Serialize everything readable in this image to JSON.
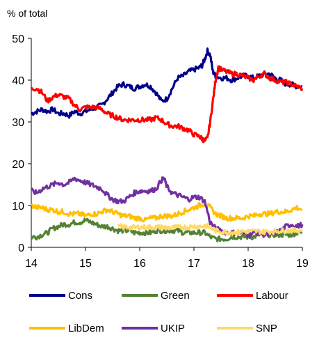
{
  "chart_data": {
    "type": "line",
    "unit_label": "% of total",
    "x_ticks": [
      "14",
      "15",
      "16",
      "17",
      "18",
      "19"
    ],
    "y_ticks": [
      "0",
      "10",
      "20",
      "30",
      "40",
      "50"
    ],
    "xlim": [
      14,
      19
    ],
    "ylim": [
      0,
      50
    ],
    "grid": false,
    "legend_position": "bottom",
    "series": [
      {
        "name": "Cons",
        "color": "#00008B",
        "points": [
          [
            14.0,
            32
          ],
          [
            14.1,
            32.5
          ],
          [
            14.2,
            33
          ],
          [
            14.3,
            32.5
          ],
          [
            14.4,
            33
          ],
          [
            14.5,
            32
          ],
          [
            14.6,
            32
          ],
          [
            14.7,
            31.5
          ],
          [
            14.8,
            32.5
          ],
          [
            14.9,
            32
          ],
          [
            15.0,
            32.5
          ],
          [
            15.1,
            33
          ],
          [
            15.2,
            33.5
          ],
          [
            15.3,
            34
          ],
          [
            15.4,
            35.5
          ],
          [
            15.5,
            37
          ],
          [
            15.6,
            38.5
          ],
          [
            15.7,
            39
          ],
          [
            15.8,
            38.5
          ],
          [
            15.9,
            38
          ],
          [
            16.0,
            38.5
          ],
          [
            16.1,
            39
          ],
          [
            16.2,
            38.5
          ],
          [
            16.3,
            37
          ],
          [
            16.4,
            35
          ],
          [
            16.5,
            35.5
          ],
          [
            16.6,
            38
          ],
          [
            16.7,
            40.5
          ],
          [
            16.8,
            41
          ],
          [
            16.9,
            42
          ],
          [
            17.0,
            42.5
          ],
          [
            17.1,
            43
          ],
          [
            17.15,
            43.5
          ],
          [
            17.2,
            45
          ],
          [
            17.25,
            47
          ],
          [
            17.3,
            46
          ],
          [
            17.35,
            42
          ],
          [
            17.4,
            41
          ],
          [
            17.5,
            40.5
          ],
          [
            17.6,
            40.5
          ],
          [
            17.7,
            40
          ],
          [
            17.8,
            40.5
          ],
          [
            17.9,
            41
          ],
          [
            18.0,
            41
          ],
          [
            18.1,
            40.5
          ],
          [
            18.2,
            41
          ],
          [
            18.3,
            41.5
          ],
          [
            18.4,
            41.5
          ],
          [
            18.5,
            40.5
          ],
          [
            18.6,
            40
          ],
          [
            18.7,
            39
          ],
          [
            18.8,
            39
          ],
          [
            18.9,
            38.5
          ],
          [
            19.0,
            38.5
          ]
        ]
      },
      {
        "name": "Green",
        "color": "#548235",
        "points": [
          [
            14.0,
            2.5
          ],
          [
            14.1,
            2.5
          ],
          [
            14.2,
            3
          ],
          [
            14.3,
            3.5
          ],
          [
            14.4,
            4.5
          ],
          [
            14.5,
            5
          ],
          [
            14.6,
            5.5
          ],
          [
            14.7,
            5.5
          ],
          [
            14.8,
            6
          ],
          [
            14.9,
            6
          ],
          [
            15.0,
            6.5
          ],
          [
            15.1,
            6
          ],
          [
            15.2,
            5.5
          ],
          [
            15.3,
            5
          ],
          [
            15.4,
            5
          ],
          [
            15.5,
            4.5
          ],
          [
            15.6,
            4
          ],
          [
            15.7,
            4
          ],
          [
            15.8,
            4
          ],
          [
            15.9,
            3.5
          ],
          [
            16.0,
            3.5
          ],
          [
            16.1,
            3.5
          ],
          [
            16.2,
            3.5
          ],
          [
            16.3,
            4
          ],
          [
            16.4,
            4
          ],
          [
            16.5,
            4
          ],
          [
            16.6,
            4
          ],
          [
            16.7,
            4
          ],
          [
            16.8,
            3.5
          ],
          [
            16.9,
            3.5
          ],
          [
            17.0,
            3.5
          ],
          [
            17.1,
            3.5
          ],
          [
            17.2,
            3.5
          ],
          [
            17.3,
            2.5
          ],
          [
            17.4,
            2
          ],
          [
            17.5,
            2
          ],
          [
            17.6,
            2
          ],
          [
            17.7,
            2.5
          ],
          [
            17.8,
            2.5
          ],
          [
            17.9,
            2.5
          ],
          [
            18.0,
            2.5
          ],
          [
            18.1,
            2.5
          ],
          [
            18.2,
            3
          ],
          [
            18.3,
            3
          ],
          [
            18.4,
            3
          ],
          [
            18.5,
            3
          ],
          [
            18.6,
            3
          ],
          [
            18.7,
            3
          ],
          [
            18.8,
            3
          ],
          [
            18.9,
            3.5
          ],
          [
            19.0,
            3.5
          ]
        ]
      },
      {
        "name": "Labour",
        "color": "#FF0000",
        "points": [
          [
            14.0,
            38
          ],
          [
            14.1,
            38
          ],
          [
            14.2,
            37
          ],
          [
            14.3,
            35
          ],
          [
            14.4,
            36
          ],
          [
            14.5,
            36.5
          ],
          [
            14.6,
            36
          ],
          [
            14.7,
            35.5
          ],
          [
            14.8,
            34
          ],
          [
            14.9,
            33
          ],
          [
            15.0,
            33.5
          ],
          [
            15.1,
            33.5
          ],
          [
            15.2,
            33.5
          ],
          [
            15.3,
            33
          ],
          [
            15.4,
            32
          ],
          [
            15.5,
            31.5
          ],
          [
            15.6,
            31
          ],
          [
            15.7,
            30.5
          ],
          [
            15.8,
            30.5
          ],
          [
            15.9,
            30.5
          ],
          [
            16.0,
            30.5
          ],
          [
            16.1,
            30.5
          ],
          [
            16.2,
            30.5
          ],
          [
            16.3,
            31
          ],
          [
            16.4,
            30.5
          ],
          [
            16.5,
            29.5
          ],
          [
            16.6,
            29
          ],
          [
            16.7,
            29
          ],
          [
            16.8,
            28.5
          ],
          [
            16.9,
            28
          ],
          [
            17.0,
            27
          ],
          [
            17.1,
            26.5
          ],
          [
            17.15,
            26
          ],
          [
            17.2,
            25.5
          ],
          [
            17.25,
            26
          ],
          [
            17.3,
            30
          ],
          [
            17.35,
            35
          ],
          [
            17.4,
            40
          ],
          [
            17.45,
            43
          ],
          [
            17.5,
            42.5
          ],
          [
            17.6,
            42
          ],
          [
            17.7,
            41.5
          ],
          [
            17.8,
            41.5
          ],
          [
            17.9,
            41
          ],
          [
            18.0,
            40.5
          ],
          [
            18.1,
            40
          ],
          [
            18.2,
            41
          ],
          [
            18.3,
            41.5
          ],
          [
            18.4,
            40.5
          ],
          [
            18.5,
            40
          ],
          [
            18.6,
            39.5
          ],
          [
            18.7,
            39.5
          ],
          [
            18.8,
            39
          ],
          [
            18.9,
            38.5
          ],
          [
            19.0,
            38
          ]
        ]
      },
      {
        "name": "LibDem",
        "color": "#FFC000",
        "points": [
          [
            14.0,
            10
          ],
          [
            14.1,
            9.5
          ],
          [
            14.2,
            9.5
          ],
          [
            14.3,
            9
          ],
          [
            14.4,
            9
          ],
          [
            14.5,
            8.5
          ],
          [
            14.6,
            8.5
          ],
          [
            14.7,
            8
          ],
          [
            14.8,
            8
          ],
          [
            14.9,
            8
          ],
          [
            15.0,
            7.5
          ],
          [
            15.1,
            8
          ],
          [
            15.2,
            8
          ],
          [
            15.3,
            8.5
          ],
          [
            15.4,
            9
          ],
          [
            15.5,
            8.5
          ],
          [
            15.6,
            8
          ],
          [
            15.7,
            7.5
          ],
          [
            15.8,
            7.5
          ],
          [
            15.9,
            7
          ],
          [
            16.0,
            7
          ],
          [
            16.1,
            6.5
          ],
          [
            16.2,
            7
          ],
          [
            16.3,
            7
          ],
          [
            16.4,
            7.5
          ],
          [
            16.5,
            7.5
          ],
          [
            16.6,
            7.5
          ],
          [
            16.7,
            8
          ],
          [
            16.8,
            8.5
          ],
          [
            16.9,
            9
          ],
          [
            17.0,
            9.5
          ],
          [
            17.1,
            10
          ],
          [
            17.2,
            10.5
          ],
          [
            17.3,
            9.5
          ],
          [
            17.4,
            8
          ],
          [
            17.5,
            7.5
          ],
          [
            17.6,
            7
          ],
          [
            17.7,
            7
          ],
          [
            17.8,
            7
          ],
          [
            17.9,
            7
          ],
          [
            18.0,
            7.5
          ],
          [
            18.1,
            7.5
          ],
          [
            18.2,
            8
          ],
          [
            18.3,
            8
          ],
          [
            18.4,
            8
          ],
          [
            18.5,
            8.5
          ],
          [
            18.6,
            8.5
          ],
          [
            18.7,
            8.5
          ],
          [
            18.8,
            9
          ],
          [
            18.9,
            9.5
          ],
          [
            19.0,
            9
          ]
        ]
      },
      {
        "name": "UKIP",
        "color": "#7030A0",
        "points": [
          [
            14.0,
            13.5
          ],
          [
            14.1,
            13
          ],
          [
            14.2,
            14
          ],
          [
            14.3,
            14.5
          ],
          [
            14.4,
            15
          ],
          [
            14.5,
            15.5
          ],
          [
            14.6,
            15
          ],
          [
            14.7,
            15.5
          ],
          [
            14.8,
            16.5
          ],
          [
            14.9,
            16
          ],
          [
            15.0,
            15.5
          ],
          [
            15.1,
            15
          ],
          [
            15.2,
            14.5
          ],
          [
            15.3,
            14
          ],
          [
            15.4,
            12.5
          ],
          [
            15.5,
            11.5
          ],
          [
            15.6,
            11
          ],
          [
            15.7,
            11
          ],
          [
            15.8,
            12
          ],
          [
            15.9,
            13
          ],
          [
            16.0,
            13.5
          ],
          [
            16.1,
            13.5
          ],
          [
            16.2,
            13.5
          ],
          [
            16.3,
            14
          ],
          [
            16.4,
            16
          ],
          [
            16.45,
            16.5
          ],
          [
            16.5,
            14.5
          ],
          [
            16.6,
            13
          ],
          [
            16.7,
            12.5
          ],
          [
            16.8,
            12
          ],
          [
            16.9,
            11.5
          ],
          [
            17.0,
            12
          ],
          [
            17.1,
            12
          ],
          [
            17.2,
            11
          ],
          [
            17.3,
            6
          ],
          [
            17.4,
            4.5
          ],
          [
            17.5,
            4
          ],
          [
            17.6,
            3.5
          ],
          [
            17.7,
            3.5
          ],
          [
            17.8,
            3.5
          ],
          [
            17.9,
            3.5
          ],
          [
            18.0,
            3
          ],
          [
            18.1,
            3.5
          ],
          [
            18.2,
            3.5
          ],
          [
            18.3,
            3
          ],
          [
            18.4,
            3
          ],
          [
            18.5,
            3.5
          ],
          [
            18.6,
            4
          ],
          [
            18.7,
            5
          ],
          [
            18.8,
            5.5
          ],
          [
            18.9,
            5
          ],
          [
            19.0,
            5.5
          ]
        ]
      },
      {
        "name": "SNP",
        "color": "#FFD966",
        "points": [
          [
            15.6,
            5
          ],
          [
            15.7,
            4.8
          ],
          [
            15.8,
            4.8
          ],
          [
            15.9,
            4.7
          ],
          [
            16.0,
            4.8
          ],
          [
            16.1,
            4.8
          ],
          [
            16.2,
            4.8
          ],
          [
            16.3,
            4.8
          ],
          [
            16.4,
            4.8
          ],
          [
            16.5,
            4.7
          ],
          [
            16.6,
            4.7
          ],
          [
            16.7,
            4.8
          ],
          [
            16.8,
            4.8
          ],
          [
            16.9,
            4.8
          ],
          [
            17.0,
            5
          ],
          [
            17.1,
            5
          ],
          [
            17.2,
            5.2
          ],
          [
            17.3,
            4.8
          ],
          [
            17.4,
            4
          ],
          [
            17.5,
            3.8
          ],
          [
            17.6,
            3.6
          ],
          [
            17.7,
            3.6
          ],
          [
            17.8,
            3.6
          ],
          [
            17.9,
            3.8
          ],
          [
            18.0,
            3.8
          ],
          [
            18.1,
            3.8
          ],
          [
            18.2,
            3.8
          ],
          [
            18.3,
            3.7
          ],
          [
            18.4,
            3.8
          ],
          [
            18.5,
            3.8
          ],
          [
            18.6,
            4
          ],
          [
            18.7,
            4
          ],
          [
            18.8,
            4
          ],
          [
            18.9,
            4
          ],
          [
            19.0,
            4
          ]
        ]
      }
    ]
  }
}
